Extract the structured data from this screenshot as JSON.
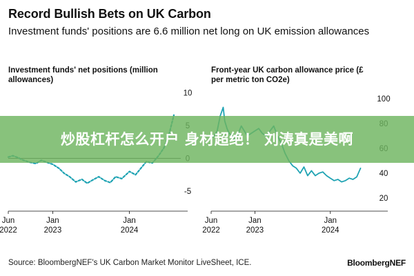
{
  "header": {
    "title": "Record Bullish Bets on UK Carbon",
    "subtitle": "Investment funds' positions are 6.6 million net long on UK emission allowances"
  },
  "footer": {
    "source": "Source: BloombergNEF's UK Carbon Market Monitor LiveSheet, ICE.",
    "brand": "BloombergNEF"
  },
  "overlay": {
    "text": "炒股杠杆怎么开户 身材超绝！ 刘涛真是美啊",
    "color": "#6eb45f"
  },
  "colors": {
    "series": "#1fa3b3",
    "axis": "#111111"
  },
  "chart_data": [
    {
      "type": "line",
      "title_lines": [
        "Investment funds' net positions (million",
        "allowances)"
      ],
      "y_axis_side": "right",
      "ylim": [
        -7,
        11
      ],
      "yticks": [
        10,
        5,
        0,
        -5
      ],
      "ytick_labels": [
        "10",
        "5",
        "0",
        "-5"
      ],
      "xlim": [
        2022.42,
        2024.67
      ],
      "xticks": [
        {
          "value": 2022.42,
          "line1": "Jun",
          "line2": "2022"
        },
        {
          "value": 2023.0,
          "line1": "Jan",
          "line2": "2023"
        },
        {
          "value": 2024.0,
          "line1": "Jan",
          "line2": "2024"
        }
      ],
      "series": [
        {
          "line_style": "dashed",
          "x": [
            2022.42,
            2022.48,
            2022.55,
            2022.62,
            2022.7,
            2022.78,
            2022.85,
            2022.92,
            2023.0,
            2023.08,
            2023.15,
            2023.22,
            2023.3,
            2023.38,
            2023.45,
            2023.52,
            2023.6,
            2023.68,
            2023.75,
            2023.82,
            2023.9,
            2024.0,
            2024.08,
            2024.15,
            2024.22,
            2024.3,
            2024.38,
            2024.45,
            2024.52,
            2024.58
          ],
          "values": [
            0.2,
            0.4,
            0.1,
            -0.3,
            -0.6,
            -0.8,
            -0.3,
            -0.6,
            -0.9,
            -1.5,
            -2.3,
            -2.8,
            -3.6,
            -3.2,
            -3.8,
            -3.3,
            -2.8,
            -3.4,
            -3.7,
            -2.8,
            -3.1,
            -2.0,
            -2.5,
            -1.5,
            -0.5,
            -0.7,
            0.4,
            1.6,
            3.8,
            6.6
          ]
        }
      ]
    },
    {
      "type": "line",
      "title_lines": [
        "Front-year UK carbon allowance price (£",
        "per metric ton CO2e)"
      ],
      "y_axis_side": "right",
      "ylim": [
        15,
        110
      ],
      "yticks": [
        100,
        80,
        60,
        40,
        20
      ],
      "ytick_labels": [
        "100",
        "80",
        "60",
        "40",
        "20"
      ],
      "xlim": [
        2022.42,
        2024.67
      ],
      "xticks": [
        {
          "value": 2022.42,
          "line1": "Jun",
          "line2": "2022"
        },
        {
          "value": 2023.0,
          "line1": "Jan",
          "line2": "2023"
        },
        {
          "value": 2024.0,
          "line1": "Jan",
          "line2": "2024"
        }
      ],
      "series": [
        {
          "line_style": "solid",
          "x": [
            2022.42,
            2022.46,
            2022.5,
            2022.54,
            2022.58,
            2022.6,
            2022.63,
            2022.66,
            2022.7,
            2022.74,
            2022.78,
            2022.82,
            2022.86,
            2022.9,
            2022.95,
            2023.0,
            2023.05,
            2023.1,
            2023.15,
            2023.2,
            2023.25,
            2023.3,
            2023.35,
            2023.4,
            2023.45,
            2023.5,
            2023.55,
            2023.6,
            2023.65,
            2023.7,
            2023.75,
            2023.8,
            2023.85,
            2023.9,
            2023.95,
            2024.0,
            2024.05,
            2024.1,
            2024.15,
            2024.2,
            2024.25,
            2024.3,
            2024.35,
            2024.4
          ],
          "values": [
            68,
            70,
            74,
            86,
            93,
            82,
            76,
            72,
            70,
            66,
            72,
            78,
            74,
            70,
            72,
            74,
            76,
            72,
            70,
            74,
            78,
            70,
            64,
            56,
            50,
            46,
            44,
            40,
            45,
            38,
            42,
            38,
            40,
            41,
            38,
            36,
            34,
            35,
            33,
            34,
            36,
            35,
            37,
            44
          ]
        }
      ]
    }
  ]
}
